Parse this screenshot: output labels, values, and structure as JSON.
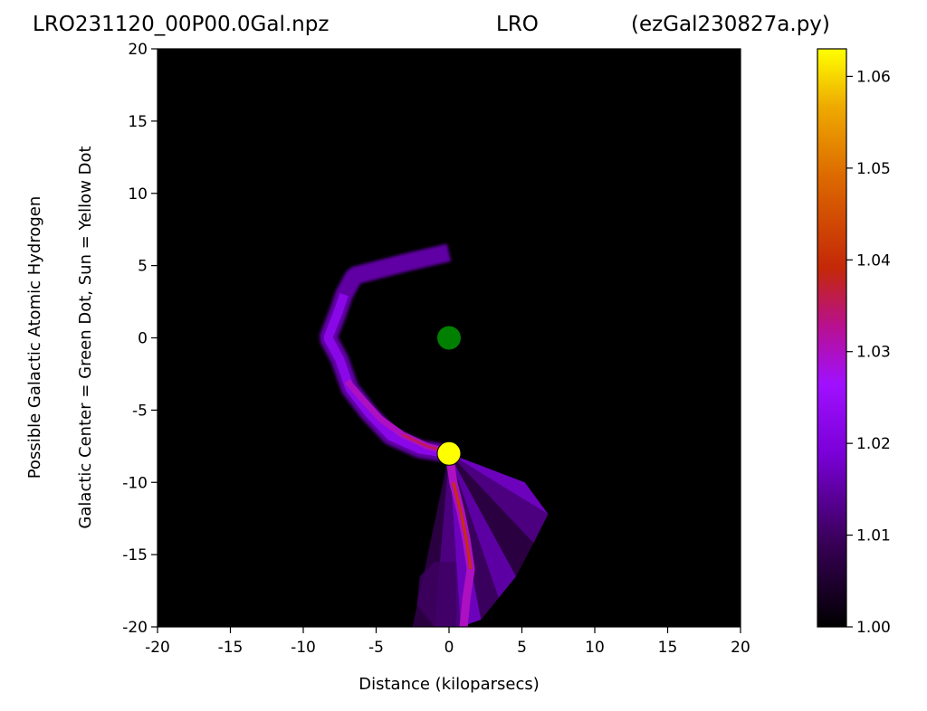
{
  "header": {
    "file": "LRO231120_00P00.0Gal.npz",
    "observatory": "LRO",
    "script": "(ezGal230827a.py)"
  },
  "chart_data": {
    "type": "heatmap",
    "xlabel": "Distance (kiloparsecs)",
    "ylabel_line1": "Possible Galactic Atomic Hydrogen",
    "ylabel_line2": "Galactic Center = Green Dot, Sun = Yellow Dot",
    "xlim": [
      -20,
      20
    ],
    "ylim": [
      -20,
      20
    ],
    "xticks": [
      -20,
      -15,
      -10,
      -5,
      0,
      5,
      10,
      15,
      20
    ],
    "yticks": [
      -20,
      -15,
      -10,
      -5,
      0,
      5,
      10,
      15,
      20
    ],
    "background": "#000000",
    "colormap": "gnuplot",
    "colorbar": {
      "min": 1.0,
      "max": 1.063,
      "ticks": [
        "1.00",
        "1.01",
        "1.02",
        "1.03",
        "1.04",
        "1.05",
        "1.06"
      ],
      "tick_values": [
        1.0,
        1.01,
        1.02,
        1.03,
        1.04,
        1.05,
        1.06
      ]
    },
    "markers": [
      {
        "name": "Galactic Center",
        "x": 0,
        "y": 0,
        "color": "#007f00"
      },
      {
        "name": "Sun",
        "x": 0,
        "y": -8,
        "color": "#ffff00"
      }
    ],
    "hydrogen_arm_outer": {
      "points": [
        [
          0,
          -8
        ],
        [
          -2,
          -7.7
        ],
        [
          -4,
          -6.8
        ],
        [
          -5.5,
          -5.2
        ],
        [
          -6.8,
          -3.5
        ],
        [
          -7.5,
          -1.5
        ],
        [
          -8.3,
          0
        ],
        [
          -7.6,
          1.8
        ],
        [
          -7.2,
          3
        ],
        [
          -6.5,
          4.3
        ],
        [
          -3,
          5.2
        ],
        [
          0,
          5.9
        ]
      ],
      "value": 1.015
    },
    "hydrogen_arm_ridge": {
      "points": [
        [
          0,
          -7.9
        ],
        [
          -1.5,
          -7.5
        ],
        [
          -3.2,
          -6.7
        ],
        [
          -4.7,
          -5.6
        ],
        [
          -5.8,
          -4.4
        ],
        [
          -7,
          -3
        ]
      ],
      "value": 1.035
    },
    "hydrogen_lower_fan": {
      "points": [
        [
          0,
          -8
        ],
        [
          0.3,
          -10
        ],
        [
          0.8,
          -12
        ],
        [
          1.2,
          -14
        ],
        [
          1.5,
          -16
        ],
        [
          1.2,
          -18
        ],
        [
          1,
          -20
        ]
      ],
      "value": 1.04
    }
  }
}
